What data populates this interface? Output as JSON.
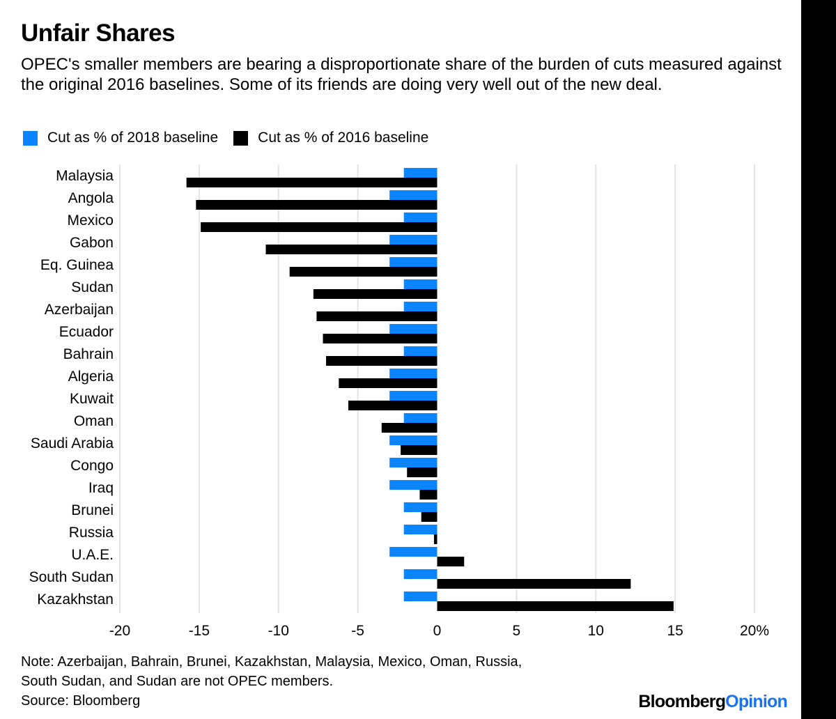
{
  "header": {
    "title": "Unfair Shares",
    "subtitle": "OPEC's smaller members are bearing a disproportionate share of the burden of cuts measured against the original 2016 baselines. Some of its friends are doing very well out of the new deal."
  },
  "legend": {
    "series_2018": "Cut as % of 2018 baseline",
    "series_2016": "Cut as % of 2016 baseline"
  },
  "colors": {
    "series_2018": "#0a84ff",
    "series_2016": "#000000",
    "grid": "#e3e3e3",
    "brand_accent": "#1a73e8"
  },
  "chart_data": {
    "type": "bar",
    "orientation": "horizontal",
    "title": "Unfair Shares",
    "categories": [
      "Malaysia",
      "Angola",
      "Mexico",
      "Gabon",
      "Eq. Guinea",
      "Sudan",
      "Azerbaijan",
      "Ecuador",
      "Bahrain",
      "Algeria",
      "Kuwait",
      "Oman",
      "Saudi Arabia",
      "Congo",
      "Iraq",
      "Brunei",
      "Russia",
      "U.A.E.",
      "South Sudan",
      "Kazakhstan"
    ],
    "series": [
      {
        "name": "Cut as % of 2018 baseline",
        "values": [
          -2.1,
          -3.0,
          -2.1,
          -3.0,
          -3.0,
          -2.1,
          -2.1,
          -3.0,
          -2.1,
          -3.0,
          -3.0,
          -2.1,
          -3.0,
          -3.0,
          -3.0,
          -2.1,
          -2.1,
          -3.0,
          -2.1,
          -2.1
        ]
      },
      {
        "name": "Cut as % of 2016 baseline",
        "values": [
          -15.8,
          -15.2,
          -14.9,
          -10.8,
          -9.3,
          -7.8,
          -7.6,
          -7.2,
          -7.0,
          -6.2,
          -5.6,
          -3.5,
          -2.3,
          -1.9,
          -1.1,
          -1.0,
          -0.2,
          1.7,
          12.2,
          14.9
        ]
      }
    ],
    "x_ticks": [
      "-20",
      "-15",
      "-10",
      "-5",
      "0",
      "5",
      "10",
      "15",
      "20%"
    ],
    "xlim": [
      -20,
      20
    ],
    "xlabel": "",
    "ylabel": "",
    "grid": true,
    "legend_position": "top-left"
  },
  "footer": {
    "note_line1": "Note: Azerbaijan, Bahrain, Brunei, Kazakhstan, Malaysia, Mexico, Oman, Russia,",
    "note_line2": "South Sudan, and Sudan are not OPEC members.",
    "source": "Source: Bloomberg",
    "brand_main": "Bloomberg",
    "brand_accent": "Opinion"
  }
}
